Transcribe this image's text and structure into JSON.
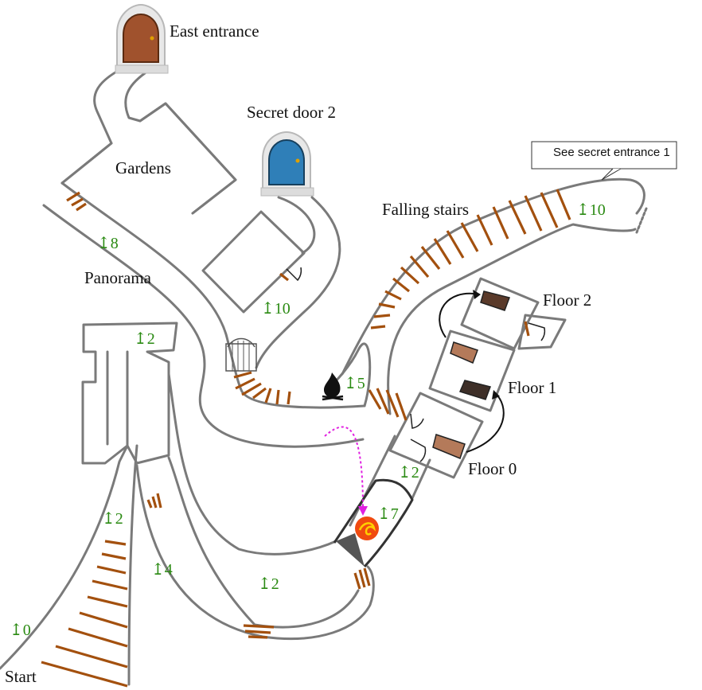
{
  "labels": {
    "east_entrance": "East entrance",
    "secret_door_2": "Secret door 2",
    "gardens": "Gardens",
    "falling_stairs": "Falling stairs",
    "panorama": "Panorama",
    "floor_2": "Floor 2",
    "floor_1": "Floor 1",
    "floor_0": "Floor 0",
    "start": "Start"
  },
  "callout": {
    "text": "See secret entrance 1",
    "icon": "pointing-hand-icon"
  },
  "elevations": {
    "panorama_path": "↥8",
    "room_inner": "↥10",
    "falling_stairs_top": "↥10",
    "campfire": "↥5",
    "upper_left_room": "↥2",
    "start_path_top": "↥2",
    "start_path_bottom": "↥0",
    "inner_corridor": "↥4",
    "lower_loop": "↥2",
    "floor0_below": "↥2",
    "phoenix_room": "↥7"
  },
  "icons": {
    "east_door": "wooden-door-icon",
    "secret_door": "blue-door-icon",
    "gate": "iron-gate-icon",
    "campfire": "campfire-icon",
    "phoenix": "phoenix-icon"
  },
  "colors": {
    "wall": "#7a7a7a",
    "stairs": "#a3500e",
    "elevation_text": "#2a8a12",
    "dashed_route": "#e020e0",
    "door_wood": "#a0522d",
    "door_blue": "#2f7fb8"
  }
}
